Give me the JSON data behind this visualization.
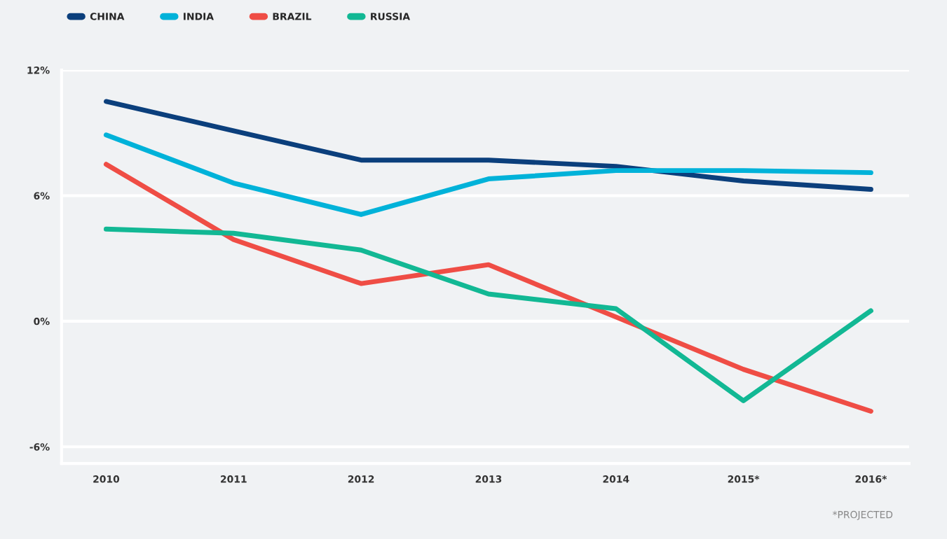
{
  "chart_data": {
    "type": "line",
    "categories": [
      "2010",
      "2011",
      "2012",
      "2013",
      "2014",
      "2015*",
      "2016*"
    ],
    "series": [
      {
        "name": "CHINA",
        "color": "#0b3f7c",
        "values": [
          10.5,
          9.1,
          7.7,
          7.7,
          7.4,
          6.7,
          6.3
        ]
      },
      {
        "name": "INDIA",
        "color": "#00b2d9",
        "values": [
          8.9,
          6.6,
          5.1,
          6.8,
          7.2,
          7.2,
          7.1
        ]
      },
      {
        "name": "BRAZIL",
        "color": "#ef4d45",
        "values": [
          7.5,
          3.9,
          1.8,
          2.7,
          0.2,
          -2.3,
          -4.3
        ]
      },
      {
        "name": "RUSSIA",
        "color": "#12b894",
        "values": [
          4.4,
          4.2,
          3.4,
          1.3,
          0.6,
          -3.8,
          0.5
        ]
      }
    ],
    "ylim": [
      -6.8,
      12
    ],
    "yticks": [
      {
        "value": -6,
        "label": "-6%"
      },
      {
        "value": 0,
        "label": "0%"
      },
      {
        "value": 6,
        "label": "6%"
      },
      {
        "value": 12,
        "label": "12%"
      }
    ],
    "grid": "y",
    "legend": "top left",
    "line_style": "solid",
    "marker": "none",
    "annotations": [
      "*PROJECTED"
    ]
  }
}
